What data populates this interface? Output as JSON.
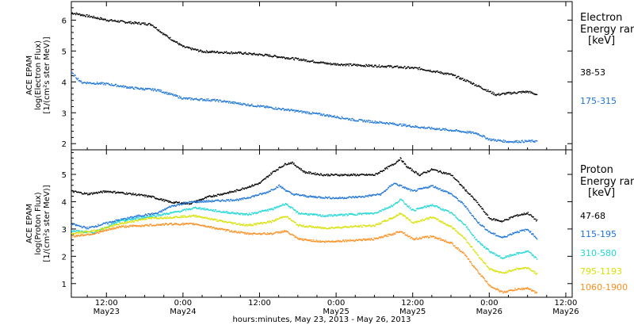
{
  "xlabel": "hours:minutes, May 23, 2013 - May 26, 2013",
  "x_ticks": [
    {
      "hours": 12,
      "label": "12:00",
      "date": "May23"
    },
    {
      "hours": 24,
      "label": "0:00",
      "date": "May24"
    },
    {
      "hours": 36,
      "label": "12:00",
      "date": ""
    },
    {
      "hours": 48,
      "label": "0:00",
      "date": "May25"
    },
    {
      "hours": 60,
      "label": "12:00",
      "date": "May25"
    },
    {
      "hours": 72,
      "label": "0:00",
      "date": "May26"
    },
    {
      "hours": 84,
      "label": "12:00",
      "date": "May26"
    }
  ],
  "chart_data": [
    {
      "type": "scatter",
      "panel": "electron",
      "xlim": [
        6.5,
        85
      ],
      "ylim": [
        1.8,
        6.6
      ],
      "yticks": [
        2,
        3,
        4,
        5,
        6
      ],
      "ylabel": [
        "ACE EPAM",
        "log(Electron Flux)",
        "[1/(cm²s ster MeV)]"
      ],
      "legend": {
        "title": [
          "Electron",
          "Energy ran",
          "[keV]"
        ],
        "placement": "right"
      },
      "series": [
        {
          "name": "38-53",
          "color": "#000000",
          "points": [
            [
              6.5,
              6.25
            ],
            [
              9,
              6.15
            ],
            [
              12,
              6.02
            ],
            [
              15,
              5.95
            ],
            [
              19,
              5.88
            ],
            [
              21,
              5.55
            ],
            [
              24,
              5.15
            ],
            [
              27,
              5.0
            ],
            [
              33,
              4.95
            ],
            [
              37,
              4.88
            ],
            [
              42,
              4.75
            ],
            [
              47,
              4.6
            ],
            [
              52,
              4.55
            ],
            [
              56,
              4.52
            ],
            [
              61,
              4.45
            ],
            [
              66,
              4.25
            ],
            [
              69,
              4.0
            ],
            [
              71,
              3.8
            ],
            [
              73,
              3.6
            ],
            [
              75,
              3.65
            ],
            [
              78,
              3.7
            ],
            [
              79.5,
              3.6
            ]
          ]
        },
        {
          "name": "175-315",
          "color": "#1a73d9",
          "points": [
            [
              6.5,
              4.3
            ],
            [
              8,
              4.0
            ],
            [
              12,
              3.95
            ],
            [
              16,
              3.82
            ],
            [
              20,
              3.75
            ],
            [
              24,
              3.48
            ],
            [
              29,
              3.42
            ],
            [
              34,
              3.28
            ],
            [
              40,
              3.12
            ],
            [
              46,
              2.95
            ],
            [
              51,
              2.78
            ],
            [
              56,
              2.68
            ],
            [
              61,
              2.55
            ],
            [
              66,
              2.45
            ],
            [
              70,
              2.35
            ],
            [
              72,
              2.15
            ],
            [
              75,
              2.08
            ],
            [
              79.5,
              2.1
            ]
          ]
        }
      ]
    },
    {
      "type": "scatter",
      "panel": "proton",
      "xlim": [
        6.5,
        85
      ],
      "ylim": [
        0.5,
        5.9
      ],
      "yticks": [
        1,
        2,
        3,
        4,
        5
      ],
      "ylabel": [
        "ACE EPAM",
        "log(Proton Flux)",
        "[1/(cm²s ster MeV)]"
      ],
      "legend": {
        "title": [
          "Proton",
          "Energy ran",
          "[keV]"
        ],
        "placement": "right"
      },
      "series": [
        {
          "name": "47-68",
          "color": "#000000",
          "points": [
            [
              6.5,
              4.4
            ],
            [
              9,
              4.3
            ],
            [
              12,
              4.4
            ],
            [
              16,
              4.3
            ],
            [
              19,
              4.2
            ],
            [
              22,
              4.0
            ],
            [
              25,
              3.95
            ],
            [
              28,
              4.2
            ],
            [
              32,
              4.4
            ],
            [
              36,
              4.7
            ],
            [
              38,
              5.1
            ],
            [
              40,
              5.4
            ],
            [
              41,
              5.45
            ],
            [
              43,
              5.1
            ],
            [
              46,
              5.0
            ],
            [
              50,
              5.0
            ],
            [
              54,
              5.0
            ],
            [
              57,
              5.4
            ],
            [
              58,
              5.6
            ],
            [
              59,
              5.3
            ],
            [
              61,
              5.0
            ],
            [
              63,
              5.2
            ],
            [
              66,
              5.0
            ],
            [
              68,
              4.5
            ],
            [
              70,
              4.0
            ],
            [
              72,
              3.4
            ],
            [
              74,
              3.3
            ],
            [
              76,
              3.5
            ],
            [
              78,
              3.6
            ],
            [
              79.5,
              3.3
            ]
          ]
        },
        {
          "name": "115-195",
          "color": "#1a73d9",
          "points": [
            [
              6.5,
              3.2
            ],
            [
              9,
              3.05
            ],
            [
              13,
              3.3
            ],
            [
              17,
              3.5
            ],
            [
              20,
              3.6
            ],
            [
              22,
              3.85
            ],
            [
              25,
              4.0
            ],
            [
              29,
              4.05
            ],
            [
              33,
              4.1
            ],
            [
              37,
              4.35
            ],
            [
              39,
              4.6
            ],
            [
              41,
              4.3
            ],
            [
              44,
              4.2
            ],
            [
              48,
              4.15
            ],
            [
              52,
              4.2
            ],
            [
              55,
              4.3
            ],
            [
              57,
              4.7
            ],
            [
              58,
              4.6
            ],
            [
              60,
              4.4
            ],
            [
              63,
              4.6
            ],
            [
              66,
              4.3
            ],
            [
              68,
              3.9
            ],
            [
              70,
              3.3
            ],
            [
              72,
              2.9
            ],
            [
              74,
              2.7
            ],
            [
              76,
              2.9
            ],
            [
              78,
              3.0
            ],
            [
              79.5,
              2.65
            ]
          ]
        },
        {
          "name": "310-580",
          "color": "#1fd6d6",
          "points": [
            [
              6.5,
              2.95
            ],
            [
              10,
              2.9
            ],
            [
              14,
              3.3
            ],
            [
              18,
              3.45
            ],
            [
              22,
              3.6
            ],
            [
              26,
              3.8
            ],
            [
              30,
              3.65
            ],
            [
              34,
              3.55
            ],
            [
              38,
              3.75
            ],
            [
              40,
              3.95
            ],
            [
              42,
              3.6
            ],
            [
              46,
              3.5
            ],
            [
              50,
              3.55
            ],
            [
              54,
              3.6
            ],
            [
              57,
              3.9
            ],
            [
              58,
              4.1
            ],
            [
              60,
              3.7
            ],
            [
              63,
              3.9
            ],
            [
              66,
              3.6
            ],
            [
              68,
              3.2
            ],
            [
              70,
              2.6
            ],
            [
              72,
              2.2
            ],
            [
              74,
              1.95
            ],
            [
              76,
              2.1
            ],
            [
              78,
              2.2
            ],
            [
              79.5,
              1.9
            ]
          ]
        },
        {
          "name": "795-1193",
          "color": "#d8e000",
          "points": [
            [
              6.5,
              2.85
            ],
            [
              10,
              2.95
            ],
            [
              14,
              3.2
            ],
            [
              18,
              3.4
            ],
            [
              22,
              3.45
            ],
            [
              26,
              3.5
            ],
            [
              30,
              3.3
            ],
            [
              34,
              3.15
            ],
            [
              38,
              3.3
            ],
            [
              40,
              3.5
            ],
            [
              42,
              3.15
            ],
            [
              46,
              3.05
            ],
            [
              50,
              3.1
            ],
            [
              54,
              3.15
            ],
            [
              57,
              3.45
            ],
            [
              58,
              3.6
            ],
            [
              60,
              3.25
            ],
            [
              63,
              3.45
            ],
            [
              66,
              3.1
            ],
            [
              68,
              2.7
            ],
            [
              70,
              2.1
            ],
            [
              72,
              1.55
            ],
            [
              74,
              1.4
            ],
            [
              76,
              1.55
            ],
            [
              78,
              1.6
            ],
            [
              79.5,
              1.35
            ]
          ]
        },
        {
          "name": "1060-1900",
          "color": "#ff8c1a",
          "points": [
            [
              6.5,
              2.75
            ],
            [
              10,
              2.85
            ],
            [
              14,
              3.1
            ],
            [
              18,
              3.15
            ],
            [
              22,
              3.2
            ],
            [
              26,
              3.2
            ],
            [
              30,
              3.0
            ],
            [
              34,
              2.85
            ],
            [
              38,
              2.85
            ],
            [
              40,
              2.95
            ],
            [
              42,
              2.65
            ],
            [
              46,
              2.55
            ],
            [
              50,
              2.6
            ],
            [
              54,
              2.65
            ],
            [
              57,
              2.85
            ],
            [
              58,
              2.95
            ],
            [
              60,
              2.65
            ],
            [
              63,
              2.75
            ],
            [
              66,
              2.5
            ],
            [
              68,
              2.1
            ],
            [
              70,
              1.5
            ],
            [
              72,
              0.95
            ],
            [
              74,
              0.7
            ],
            [
              76,
              0.8
            ],
            [
              78,
              0.85
            ],
            [
              79.5,
              0.65
            ]
          ]
        }
      ]
    }
  ]
}
